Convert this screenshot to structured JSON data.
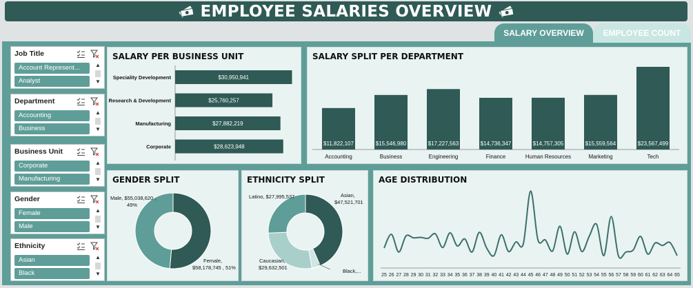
{
  "header": {
    "title": "EMPLOYEE SALARIES OVERVIEW"
  },
  "tabs": [
    {
      "label": "SALARY OVERVIEW",
      "active": true
    },
    {
      "label": "EMPLOYEE COUNT",
      "active": false
    }
  ],
  "slicers": [
    {
      "title": "Job Title",
      "items": [
        "Account Represent...",
        "Analyst"
      ]
    },
    {
      "title": "Department",
      "items": [
        "Accounting",
        "Business"
      ]
    },
    {
      "title": "Business Unit",
      "items": [
        "Corporate",
        "Manufacturing"
      ]
    },
    {
      "title": "Gender",
      "items": [
        "Female",
        "Male"
      ]
    },
    {
      "title": "Ethnicity",
      "items": [
        "Asian",
        "Black"
      ]
    }
  ],
  "panels": {
    "business_unit": "SALARY PER BUSINESS UNIT",
    "department": "SALARY SPLIT PER DEPARTMENT",
    "gender": "GENDER SPLIT",
    "ethnicity": "ETHNICITY SPLIT",
    "age": "AGE DISTRIBUTION"
  },
  "colors": {
    "dark": "#2f5a55",
    "mid": "#5f9e98",
    "light": "#a9cfcb",
    "panel": "#e9f3f2"
  },
  "chart_data": [
    {
      "id": "business_unit",
      "type": "bar",
      "orientation": "horizontal",
      "title": "SALARY PER BUSINESS UNIT",
      "categories": [
        "Speciality Development",
        "Research & Development",
        "Manufacturing",
        "Corporate"
      ],
      "values": [
        30950941,
        25760257,
        27882219,
        28623948
      ],
      "labels": [
        "$30,950,941",
        "$25,760,257",
        "$27,882,219",
        "$28,623,948"
      ]
    },
    {
      "id": "department",
      "type": "bar",
      "title": "SALARY SPLIT PER DEPARTMENT",
      "categories": [
        "Accounting",
        "Business",
        "Engineering",
        "Finance",
        "Human Resources",
        "Marketing",
        "Tech"
      ],
      "values": [
        11822107,
        15546980,
        17227563,
        14736347,
        14757305,
        15559564,
        23567499
      ],
      "labels": [
        "$11,822,107",
        "$15,546,980",
        "$17,227,563",
        "$14,736,347",
        "$14,757,305",
        "$15,559,564",
        "$23,567,499"
      ]
    },
    {
      "id": "gender",
      "type": "pie",
      "donut": true,
      "title": "GENDER SPLIT",
      "categories": [
        "Female",
        "Male"
      ],
      "values": [
        58178745,
        55038620
      ],
      "labels": [
        {
          "line1": "Female,",
          "line2": "$58,178,745 , 51%"
        },
        {
          "line1": "Male, $55,038,620 ,",
          "line2": "49%"
        }
      ]
    },
    {
      "id": "ethnicity",
      "type": "pie",
      "donut": true,
      "title": "ETHNICITY SPLIT",
      "categories": [
        "Asian",
        "Black",
        "Caucasian",
        "Latino"
      ],
      "values": [
        47521701,
        4000000,
        29632501,
        27995537
      ],
      "labels": [
        {
          "line1": "Asian,",
          "line2": "$47,521,701"
        },
        {
          "line1": "Black,...",
          "line2": ""
        },
        {
          "line1": "Caucasian,",
          "line2": "$29,632,501"
        },
        {
          "line1": "Latino, $27,995,537",
          "line2": ""
        }
      ]
    },
    {
      "id": "age",
      "type": "line",
      "title": "AGE DISTRIBUTION",
      "x": [
        25,
        26,
        27,
        28,
        29,
        30,
        31,
        32,
        33,
        34,
        35,
        36,
        37,
        38,
        39,
        40,
        41,
        42,
        43,
        44,
        45,
        46,
        47,
        48,
        49,
        50,
        51,
        52,
        53,
        54,
        55,
        56,
        57,
        58,
        59,
        60,
        61,
        62,
        63,
        64,
        65
      ],
      "values": [
        3.8,
        6.5,
        3.0,
        6.2,
        5.8,
        5.9,
        5.7,
        6.6,
        3.9,
        6.8,
        4.2,
        5.6,
        3.0,
        6.9,
        3.8,
        2.3,
        6.4,
        3.1,
        5.0,
        4.6,
        15.0,
        5.4,
        5.4,
        3.2,
        8.1,
        2.6,
        7.0,
        3.1,
        6.1,
        8.5,
        2.3,
        10.0,
        2.2,
        3.0,
        3.4,
        6.1,
        2.6,
        4.8,
        4.3,
        4.9,
        2.3
      ],
      "ylim": [
        0,
        16
      ]
    }
  ]
}
